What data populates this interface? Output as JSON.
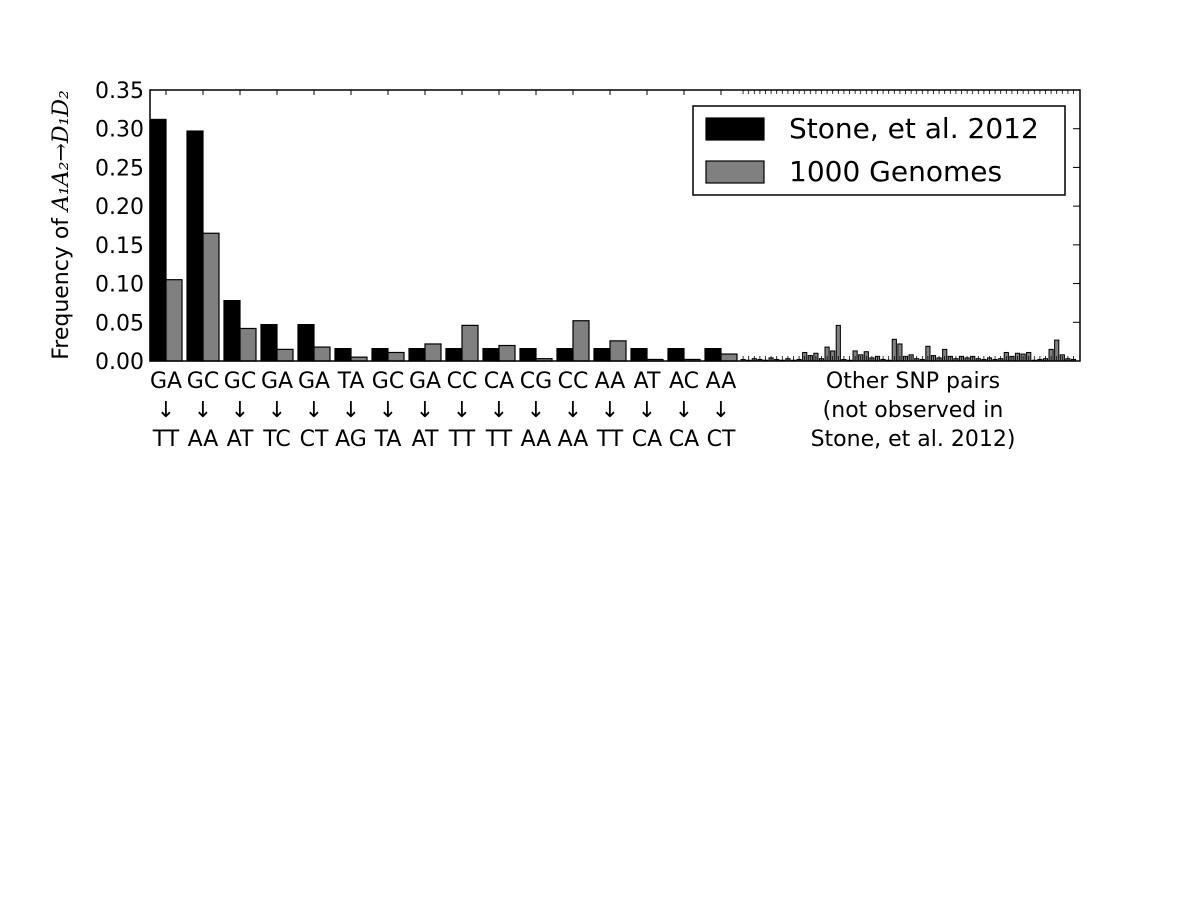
{
  "chart_data": {
    "type": "bar",
    "ylabel_prefix": "Frequency of ",
    "ylabel_math": "A₁A₂→D₁D₂",
    "ylim": [
      0,
      0.35
    ],
    "yticks": [
      "0.00",
      "0.05",
      "0.10",
      "0.15",
      "0.20",
      "0.25",
      "0.30",
      "0.35"
    ],
    "grid": false,
    "legend_position": "top-right",
    "series": [
      {
        "name": "Stone, et al. 2012",
        "color": "#000000"
      },
      {
        "name": "1000 Genomes",
        "color": "#808080"
      }
    ],
    "categories": [
      {
        "from": "GA",
        "arrow": "↓",
        "to": "TT",
        "stone": 0.312,
        "genomes": 0.105
      },
      {
        "from": "GC",
        "arrow": "↓",
        "to": "AA",
        "stone": 0.297,
        "genomes": 0.165
      },
      {
        "from": "GC",
        "arrow": "↓",
        "to": "AT",
        "stone": 0.078,
        "genomes": 0.042
      },
      {
        "from": "GA",
        "arrow": "↓",
        "to": "TC",
        "stone": 0.047,
        "genomes": 0.015
      },
      {
        "from": "GA",
        "arrow": "↓",
        "to": "CT",
        "stone": 0.047,
        "genomes": 0.018
      },
      {
        "from": "TA",
        "arrow": "↓",
        "to": "AG",
        "stone": 0.016,
        "genomes": 0.005
      },
      {
        "from": "GC",
        "arrow": "↓",
        "to": "TA",
        "stone": 0.016,
        "genomes": 0.011
      },
      {
        "from": "GA",
        "arrow": "↓",
        "to": "AT",
        "stone": 0.016,
        "genomes": 0.022
      },
      {
        "from": "CC",
        "arrow": "↓",
        "to": "TT",
        "stone": 0.016,
        "genomes": 0.046
      },
      {
        "from": "CA",
        "arrow": "↓",
        "to": "TT",
        "stone": 0.016,
        "genomes": 0.02
      },
      {
        "from": "CG",
        "arrow": "↓",
        "to": "AA",
        "stone": 0.016,
        "genomes": 0.003
      },
      {
        "from": "CC",
        "arrow": "↓",
        "to": "AA",
        "stone": 0.016,
        "genomes": 0.052
      },
      {
        "from": "AA",
        "arrow": "↓",
        "to": "TT",
        "stone": 0.016,
        "genomes": 0.026
      },
      {
        "from": "AT",
        "arrow": "↓",
        "to": "CA",
        "stone": 0.016,
        "genomes": 0.002
      },
      {
        "from": "AC",
        "arrow": "↓",
        "to": "CA",
        "stone": 0.016,
        "genomes": 0.002
      },
      {
        "from": "AA",
        "arrow": "↓",
        "to": "CT",
        "stone": 0.016,
        "genomes": 0.009
      }
    ],
    "other_label_lines": [
      "Other SNP pairs",
      "(not observed in",
      "Stone, et al. 2012)"
    ],
    "other_genomes_values": [
      0.002,
      0.001,
      0.003,
      0.002,
      0.001,
      0.004,
      0.002,
      0.001,
      0.003,
      0.001,
      0.002,
      0.011,
      0.007,
      0.01,
      0.003,
      0.018,
      0.013,
      0.046,
      0.002,
      0.001,
      0.013,
      0.008,
      0.012,
      0.004,
      0.006,
      0.002,
      0.001,
      0.028,
      0.022,
      0.006,
      0.008,
      0.003,
      0.002,
      0.019,
      0.007,
      0.004,
      0.015,
      0.006,
      0.003,
      0.006,
      0.004,
      0.006,
      0.003,
      0.002,
      0.004,
      0.002,
      0.003,
      0.011,
      0.006,
      0.01,
      0.009,
      0.011,
      0.001,
      0.002,
      0.003,
      0.015,
      0.027,
      0.008,
      0.003,
      0.002
    ]
  }
}
